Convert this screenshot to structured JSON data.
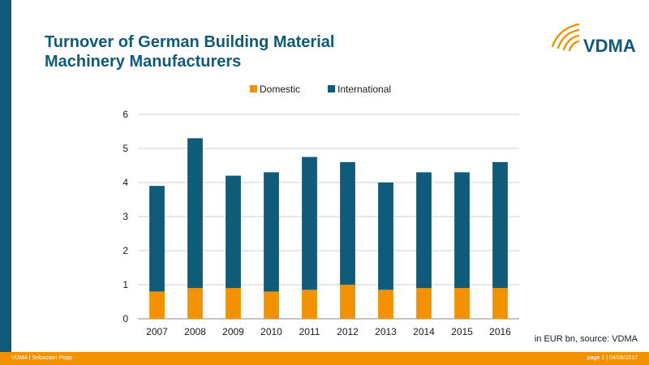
{
  "header": {
    "title_line1": "Turnover of German Building Material",
    "title_line2": "Machinery Manufacturers",
    "logo_text": "VDMA"
  },
  "colors": {
    "brand_blue": "#0e5b7a",
    "domestic": "#f39200",
    "international": "#0e5b7a",
    "footer": "#f39200"
  },
  "chart_data": {
    "type": "bar",
    "stacked": true,
    "categories": [
      "2007",
      "2008",
      "2009",
      "2010",
      "2011",
      "2012",
      "2013",
      "2014",
      "2015",
      "2016"
    ],
    "series": [
      {
        "name": "Domestic",
        "values": [
          0.8,
          0.9,
          0.9,
          0.8,
          0.85,
          1.0,
          0.85,
          0.9,
          0.9,
          0.9
        ]
      },
      {
        "name": "International",
        "values": [
          3.1,
          4.4,
          3.3,
          3.5,
          3.9,
          3.6,
          3.15,
          3.4,
          3.4,
          3.7
        ]
      }
    ],
    "yticks": [
      0,
      1,
      2,
      3,
      4,
      5,
      6
    ],
    "ylim": [
      0,
      6
    ],
    "grid": true,
    "legend_position": "top"
  },
  "note": "in EUR bn, source: VDMA",
  "footer": {
    "left": "VDMA | Sebastian Popp",
    "right": "page 1 | 04/08/2017"
  }
}
